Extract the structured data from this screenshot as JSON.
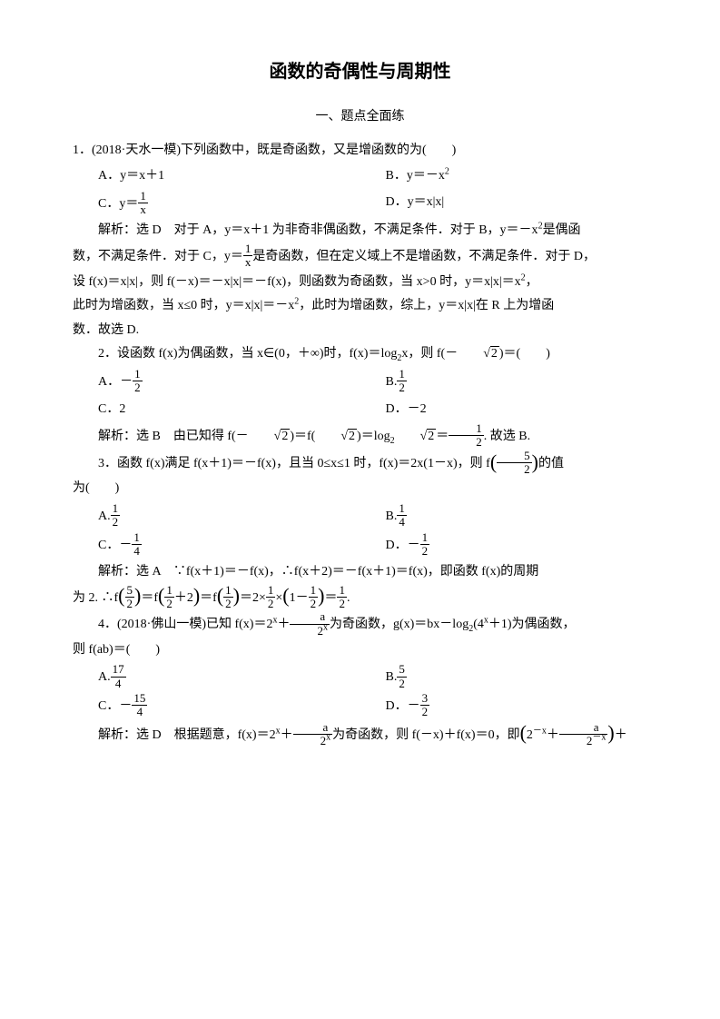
{
  "title": "函数的奇偶性与周期性",
  "section1": "一、题点全面练",
  "q1": {
    "stem_a": "1．(2018·天水一模)下列函数中，既是奇函数，又是增函数的为(　　)",
    "optA": "A．y＝x＋1",
    "optB": "B．y＝－x",
    "optB_sup": "2",
    "optC_pre": "C．y＝",
    "optC_num": "1",
    "optC_den": "x",
    "optD": "D．y＝x|x|",
    "ans_p1_a": "解析：选 D　对于 A，y＝x＋1 为非奇非偶函数，不满足条件．对于 B，y＝－x",
    "ans_p1_b": "是偶函",
    "ans_p2_a": "数，不满足条件．对于 C，y＝",
    "ans_p2_num": "1",
    "ans_p2_den": "x",
    "ans_p2_b": "是奇函数，但在定义域上不是增函数，不满足条件．对于 D，",
    "ans_p3": "设 f(x)＝x|x|，则 f(－x)＝－x|x|＝－f(x)，则函数为奇函数，当 x>0 时，y＝x|x|＝x",
    "ans_p3_b": "，",
    "ans_p4": "此时为增函数，当 x≤0 时，y＝x|x|＝－x",
    "ans_p4_b": "，此时为增函数，综上，y＝x|x|在 R 上为增函",
    "ans_p5": "数．故选 D."
  },
  "q2": {
    "stem_a": "2．设函数 f(x)为偶函数，当 x∈(0，＋∞)时，f(x)＝log",
    "stem_sub": "2",
    "stem_b": "x，则 f(－",
    "stem_rad": "2",
    "stem_c": ")＝(　　)",
    "optA_pre": "A．－",
    "optA_num": "1",
    "optA_den": "2",
    "optB_pre": "B.",
    "optB_num": "1",
    "optB_den": "2",
    "optC": "C．2",
    "optD": "D．－2",
    "ans_a": "解析：选 B　由已知得 f(－",
    "ans_rad1": "2",
    "ans_b": ")＝f(",
    "ans_rad2": "2",
    "ans_c": ")＝log",
    "ans_sub": "2",
    "ans_rad3": "2",
    "ans_d": "＝",
    "ans_num": "1",
    "ans_den": "2",
    "ans_e": ". 故选 B."
  },
  "q3": {
    "stem_a": "3．函数 f(x)满足 f(x＋1)＝－f(x)，且当 0≤x≤1 时，f(x)＝2x(1－x)，则 f",
    "stem_num": "5",
    "stem_den": "2",
    "stem_b": "的值",
    "stem_c": "为(　　)",
    "optA_pre": "A.",
    "optA_num": "1",
    "optA_den": "2",
    "optB_pre": "B.",
    "optB_num": "1",
    "optB_den": "4",
    "optC_pre": "C．－",
    "optC_num": "1",
    "optC_den": "4",
    "optD_pre": "D．－",
    "optD_num": "1",
    "optD_den": "2",
    "ans_p1": "解析：选 A　∵f(x＋1)＝－f(x)，∴f(x＋2)＝－f(x＋1)＝f(x)，即函数 f(x)的周期",
    "ans_p2_a": "为 2. ∴f",
    "ans_p2_n1": "5",
    "ans_p2_d1": "2",
    "ans_p2_b": "＝f",
    "ans_p2_n2": "1",
    "ans_p2_d2": "2",
    "ans_p2_c": "＋2",
    "ans_p2_d": "＝f",
    "ans_p2_n3": "1",
    "ans_p2_d3": "2",
    "ans_p2_e": "＝2×",
    "ans_p2_n4": "1",
    "ans_p2_d4": "2",
    "ans_p2_f": "×",
    "ans_p2_g": "1－",
    "ans_p2_n5": "1",
    "ans_p2_d5": "2",
    "ans_p2_h": "＝",
    "ans_p2_n6": "1",
    "ans_p2_d6": "2",
    "ans_p2_i": "."
  },
  "q4": {
    "stem_a": "4．(2018·佛山一模)已知 f(x)＝2",
    "stem_sup1": "x",
    "stem_b": "＋",
    "stem_num1": "a",
    "stem_den1_a": "2",
    "stem_den1_sup": "x",
    "stem_c": "为奇函数，g(x)＝bx－log",
    "stem_sub": "2",
    "stem_d": "(4",
    "stem_sup2": "x",
    "stem_e": "＋1)为偶函数，",
    "stem_f": "则 f(ab)＝(　　)",
    "optA_pre": "A.",
    "optA_num": "17",
    "optA_den": "4",
    "optB_pre": "B.",
    "optB_num": "5",
    "optB_den": "2",
    "optC_pre": "C．－",
    "optC_num": "15",
    "optC_den": "4",
    "optD_pre": "D．－",
    "optD_num": "3",
    "optD_den": "2",
    "ans_a": "解析：选 D　根据题意，f(x)＝2",
    "ans_sup1": "x",
    "ans_b": "＋",
    "ans_num1": "a",
    "ans_den1_a": "2",
    "ans_den1_sup": "x",
    "ans_c": "为奇函数，则 f(－x)＋f(x)＝0，即",
    "ans_d": "2",
    "ans_sup2": "－x",
    "ans_e": "＋",
    "ans_num2": "a",
    "ans_den2_a": "2",
    "ans_den2_sup": "－x",
    "ans_f": "＋"
  }
}
